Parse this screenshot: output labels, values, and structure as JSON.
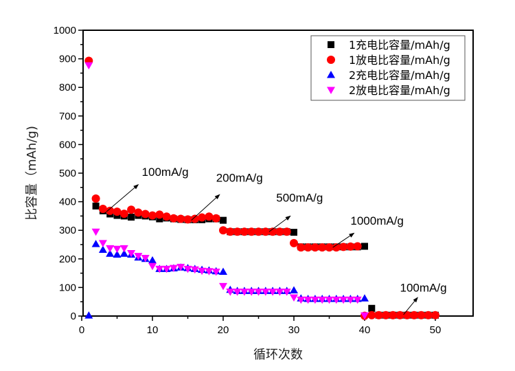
{
  "chart_data": {
    "type": "scatter",
    "title": "",
    "xlabel": "循环次数",
    "ylabel": "比容量（mAh/g)",
    "xlim": [
      0,
      55
    ],
    "ylim": [
      0,
      1000
    ],
    "xticks": [
      0,
      10,
      20,
      30,
      40,
      50
    ],
    "xtick_labels": [
      "0",
      "10",
      "20",
      "30",
      "40",
      "50"
    ],
    "yticks": [
      0,
      100,
      200,
      300,
      400,
      500,
      600,
      700,
      800,
      900,
      1000
    ],
    "ytick_labels": [
      "0",
      "100",
      "200",
      "300",
      "400",
      "500",
      "600",
      "700",
      "800",
      "900",
      "1000"
    ],
    "grid": false,
    "legend_position": "top-right",
    "series": [
      {
        "name": "1充电比容量/mAh/g",
        "marker": "square",
        "color": "#000000",
        "x": [
          2,
          3,
          4,
          5,
          6,
          7,
          8,
          9,
          10,
          11,
          12,
          13,
          14,
          15,
          16,
          17,
          18,
          19,
          20,
          21,
          22,
          23,
          24,
          25,
          26,
          27,
          28,
          29,
          30,
          31,
          32,
          33,
          34,
          35,
          36,
          37,
          38,
          39,
          40,
          41,
          42,
          43,
          44,
          45,
          46,
          47,
          48,
          49,
          50
        ],
        "y": [
          385,
          368,
          357,
          352,
          350,
          346,
          352,
          350,
          347,
          340,
          343,
          340,
          338,
          337,
          337,
          337,
          340,
          340,
          335,
          295,
          295,
          295,
          295,
          295,
          295,
          295,
          295,
          295,
          293,
          242,
          242,
          242,
          242,
          242,
          242,
          242,
          242,
          242,
          244,
          27,
          3,
          3,
          3,
          3,
          3,
          3,
          3,
          3,
          3
        ]
      },
      {
        "name": "1放电比容量/mAh/g",
        "marker": "circle",
        "color": "#ff0000",
        "x": [
          1,
          2,
          3,
          4,
          5,
          6,
          7,
          8,
          9,
          10,
          11,
          12,
          13,
          14,
          15,
          16,
          17,
          18,
          19,
          20,
          21,
          22,
          23,
          24,
          25,
          26,
          27,
          28,
          29,
          30,
          31,
          32,
          33,
          34,
          35,
          36,
          37,
          38,
          39,
          40,
          41,
          42,
          43,
          44,
          45,
          46,
          47,
          48,
          49,
          50
        ],
        "y": [
          893,
          411,
          375,
          368,
          365,
          358,
          372,
          362,
          357,
          352,
          355,
          348,
          342,
          340,
          338,
          340,
          345,
          348,
          342,
          300,
          295,
          295,
          295,
          295,
          295,
          295,
          295,
          295,
          295,
          255,
          240,
          240,
          240,
          240,
          240,
          240,
          242,
          243,
          244,
          1,
          3,
          3,
          3,
          3,
          3,
          3,
          3,
          3,
          3,
          3
        ]
      },
      {
        "name": "2充电比容量/mAh/g",
        "marker": "triangle-up",
        "color": "#0000ff",
        "x": [
          1,
          2,
          3,
          4,
          5,
          6,
          7,
          8,
          9,
          10,
          11,
          12,
          13,
          14,
          15,
          16,
          17,
          18,
          19,
          20,
          21,
          22,
          23,
          24,
          25,
          26,
          27,
          28,
          29,
          30,
          31,
          32,
          33,
          34,
          35,
          36,
          37,
          38,
          39,
          40
        ],
        "y": [
          2,
          252,
          232,
          218,
          215,
          218,
          215,
          205,
          200,
          195,
          165,
          165,
          167,
          170,
          168,
          165,
          162,
          160,
          157,
          155,
          92,
          88,
          88,
          88,
          88,
          88,
          88,
          88,
          88,
          90,
          62,
          60,
          60,
          60,
          60,
          60,
          60,
          60,
          60,
          62
        ]
      },
      {
        "name": "2放电比容量/mAh/g",
        "marker": "triangle-down",
        "color": "#ff00ff",
        "x": [
          1,
          2,
          3,
          4,
          5,
          6,
          7,
          8,
          9,
          10,
          11,
          12,
          13,
          14,
          15,
          16,
          17,
          18,
          19,
          20,
          21,
          22,
          23,
          24,
          25,
          26,
          27,
          28,
          29,
          30,
          31,
          32,
          33,
          34,
          35,
          36,
          37,
          38,
          39,
          40
        ],
        "y": [
          877,
          295,
          255,
          237,
          235,
          237,
          220,
          210,
          203,
          175,
          165,
          165,
          168,
          172,
          165,
          163,
          158,
          157,
          155,
          105,
          85,
          85,
          85,
          85,
          85,
          85,
          85,
          85,
          85,
          65,
          57,
          57,
          57,
          57,
          57,
          57,
          57,
          57,
          57,
          2
        ]
      }
    ],
    "annotations": [
      {
        "text": "100mA/g",
        "arrow_from": [
          3.5,
          365
        ],
        "arrow_to": [
          8,
          460
        ],
        "text_at": [
          8.5,
          490
        ]
      },
      {
        "text": "200mA/g",
        "arrow_from": [
          15.5,
          335
        ],
        "arrow_to": [
          19.5,
          425
        ],
        "text_at": [
          19,
          470
        ]
      },
      {
        "text": "500mA/g",
        "arrow_from": [
          26.5,
          295
        ],
        "arrow_to": [
          29.5,
          350
        ],
        "text_at": [
          27.5,
          400
        ]
      },
      {
        "text": "1000mA/g",
        "arrow_from": [
          35.5,
          240
        ],
        "arrow_to": [
          38.5,
          290
        ],
        "text_at": [
          38,
          320
        ]
      },
      {
        "text": "100mA/g",
        "arrow_from": [
          45.5,
          5
        ],
        "arrow_to": [
          47.5,
          65
        ],
        "text_at": [
          45,
          85
        ]
      }
    ]
  }
}
